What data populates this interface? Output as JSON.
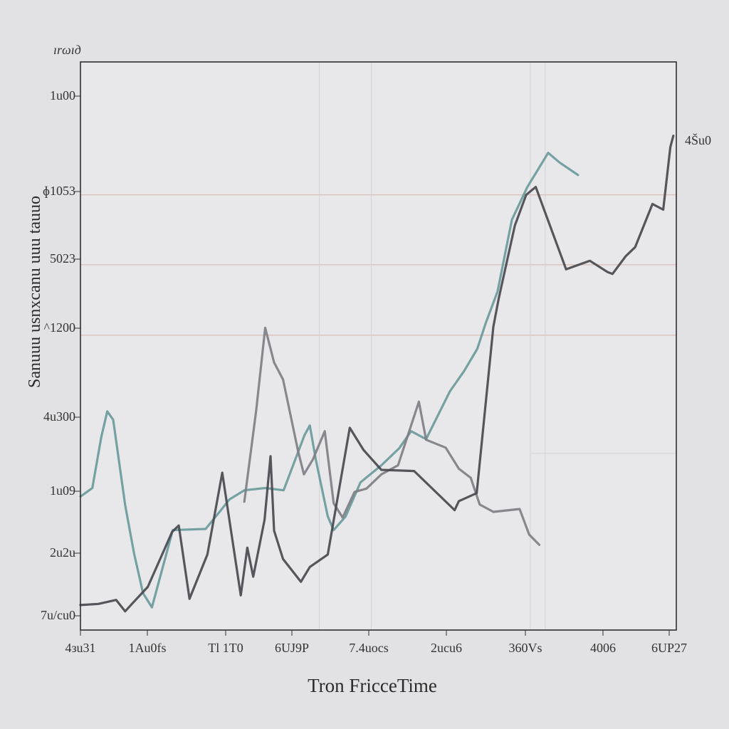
{
  "chart_data": {
    "type": "line",
    "title": "",
    "corner_label": "ırωıд",
    "xlabel": "Tron FricceTime",
    "ylabel": "Sanuuu usnxcanu uuu tauuo",
    "x_tick_labels": [
      "4зu31",
      "1Au0fs",
      "Tl 1T0",
      "6UJ9P",
      "7.4uoсs",
      "2uсu6",
      "360Vs",
      "4006",
      "6UР27"
    ],
    "y_tick_labels": [
      "1u00",
      "ɸ1053",
      "5023",
      "^1200",
      "4u300",
      "1u09",
      "2u2u",
      "7u/сu0"
    ],
    "right_label": "4Šu0",
    "xlim": [
      0,
      100
    ],
    "ylim": [
      0,
      100
    ],
    "grid": {
      "h_lines": [
        76.6,
        64.3,
        51.9
      ],
      "h_line_color": "#d9b1a8",
      "v_lines": [
        40.1,
        48.8,
        75.5,
        78.0
      ],
      "v_line_color": "#d3d3d6",
      "extra_h_line": {
        "y": 31.1,
        "x_from": 75.5,
        "x_to": 100
      }
    },
    "series": [
      {
        "name": "teal",
        "color": "#6a9a9c",
        "points": [
          [
            0,
            23.5
          ],
          [
            2,
            25
          ],
          [
            3.5,
            34
          ],
          [
            4.5,
            38.5
          ],
          [
            5.5,
            37
          ],
          [
            7.5,
            22
          ],
          [
            9,
            13.5
          ],
          [
            10.5,
            6.5
          ],
          [
            12,
            4
          ],
          [
            15.5,
            17.6
          ],
          [
            21,
            17.8
          ],
          [
            23.5,
            21
          ],
          [
            25,
            23
          ],
          [
            27.5,
            24.6
          ],
          [
            31,
            25
          ],
          [
            34.1,
            24.6
          ],
          [
            37.6,
            34.3
          ],
          [
            38.5,
            36
          ],
          [
            39.5,
            30
          ],
          [
            41.5,
            20
          ],
          [
            42.5,
            17.6
          ],
          [
            44.5,
            20
          ],
          [
            47,
            26
          ],
          [
            50.5,
            29
          ],
          [
            53.5,
            32
          ],
          [
            55.5,
            35
          ],
          [
            58,
            33.6
          ],
          [
            62,
            42
          ],
          [
            64.4,
            45.6
          ],
          [
            66.6,
            49.5
          ],
          [
            68,
            54
          ],
          [
            70,
            59.6
          ],
          [
            72.4,
            72.2
          ],
          [
            75,
            78
          ],
          [
            78.5,
            84
          ],
          [
            80.4,
            82.3
          ],
          [
            83.5,
            80.1
          ]
        ]
      },
      {
        "name": "mid-gray",
        "color": "#7e7e84",
        "points": [
          [
            28.3,
            29.1
          ],
          [
            27.5,
            22.6
          ],
          [
            29.5,
            38.7
          ],
          [
            31,
            53.2
          ],
          [
            32.5,
            47.1
          ],
          [
            34,
            44.1
          ],
          [
            36.5,
            31.6
          ],
          [
            37.5,
            27.4
          ],
          [
            39,
            30
          ],
          [
            41,
            35
          ],
          [
            42.5,
            22.3
          ],
          [
            44,
            19.8
          ],
          [
            46,
            24.3
          ],
          [
            48,
            24.9
          ],
          [
            50.5,
            27.4
          ],
          [
            53.3,
            29
          ],
          [
            56.8,
            40.2
          ],
          [
            58,
            33.5
          ],
          [
            61.3,
            32.1
          ],
          [
            63.5,
            28.4
          ],
          [
            65.5,
            26.8
          ],
          [
            67,
            22.1
          ],
          [
            69.3,
            20.8
          ],
          [
            73.7,
            21.3
          ],
          [
            75.3,
            16.8
          ],
          [
            77,
            15
          ]
        ]
      },
      {
        "name": "dark",
        "color": "#48484f",
        "points": [
          [
            0,
            4.4
          ],
          [
            3,
            4.6
          ],
          [
            6,
            5.3
          ],
          [
            7.5,
            3.3
          ],
          [
            9,
            5
          ],
          [
            11.3,
            7.6
          ],
          [
            15.4,
            17.3
          ],
          [
            16.5,
            18.4
          ],
          [
            18.3,
            5.5
          ],
          [
            21.3,
            13.3
          ],
          [
            23.8,
            27.7
          ],
          [
            26.9,
            6.1
          ],
          [
            28,
            14.5
          ],
          [
            29,
            9.4
          ],
          [
            30.9,
            19.4
          ],
          [
            31.9,
            30.6
          ],
          [
            32.5,
            17.5
          ],
          [
            34,
            12.5
          ],
          [
            37,
            8.5
          ],
          [
            38.5,
            11.1
          ],
          [
            41.5,
            13.3
          ],
          [
            45.2,
            35.6
          ],
          [
            47.5,
            31.7
          ],
          [
            50.5,
            28.2
          ],
          [
            56,
            28
          ],
          [
            62.8,
            21.1
          ],
          [
            63.5,
            22.7
          ],
          [
            66.5,
            24.1
          ],
          [
            69.3,
            53.4
          ],
          [
            70.2,
            58.4
          ],
          [
            71.8,
            66
          ],
          [
            72.9,
            71.2
          ],
          [
            74.8,
            76.6
          ],
          [
            76.4,
            78
          ],
          [
            81.5,
            63.5
          ],
          [
            85.5,
            65
          ],
          [
            88.5,
            63
          ],
          [
            89.3,
            62.7
          ],
          [
            91.5,
            65.8
          ],
          [
            93.1,
            67.4
          ],
          [
            96,
            75
          ],
          [
            97.8,
            74
          ],
          [
            99,
            85
          ],
          [
            99.5,
            87
          ]
        ]
      }
    ]
  }
}
